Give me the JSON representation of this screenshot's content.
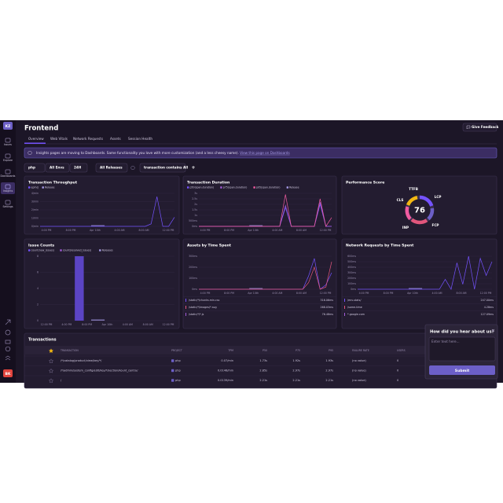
{
  "sidebar": {
    "avatar": "KZ",
    "items": [
      "Issues",
      "Explore",
      "Dashboards",
      "Insights",
      "Settings"
    ],
    "user": "BK"
  },
  "header": {
    "title": "Frontend",
    "feedback_button": "Give Feedback"
  },
  "tabs": [
    "Overview",
    "Web Vitals",
    "Network Requests",
    "Assets",
    "Session Health"
  ],
  "banner": {
    "text": "Insights pages are moving to Dashboards. Same functionality you love with more customization (and a less cheesy name).",
    "link": "View this page on Dashboards"
  },
  "filters": [
    "php",
    "All Envs",
    "24H",
    "All Releases",
    "transaction contains All",
    "+"
  ],
  "panels": {
    "throughput": {
      "type": "line",
      "title": "Transaction Throughput",
      "legend": [
        {
          "label": "epm()",
          "color": "#7553ff"
        },
        {
          "label": "Release",
          "color": "#a59ae6"
        }
      ],
      "ylim": [
        0,
        4
      ],
      "yticks": [
        {
          "value": 0,
          "label": "0/min"
        },
        {
          "value": 1,
          "label": "1/min"
        },
        {
          "value": 2,
          "label": "2/min"
        },
        {
          "value": 3,
          "label": "3/min"
        },
        {
          "value": 4,
          "label": "4/min"
        }
      ],
      "xticks": [
        "4:00 PM",
        "8:00 PM",
        "Apr 10th",
        "4:00 AM",
        "8:00 AM",
        "12:00 PM"
      ],
      "series": [
        {
          "color": "#7553ff",
          "values": [
            0,
            0,
            0,
            0,
            0,
            0,
            0,
            0,
            0,
            0,
            0,
            0,
            0,
            0,
            0,
            0,
            0,
            0,
            0,
            0.3,
            3.6,
            0,
            0,
            1.1
          ]
        }
      ]
    },
    "duration": {
      "type": "line",
      "title": "Transaction Duration",
      "legend": [
        {
          "label": "p50(span.duration)",
          "color": "#7553ff"
        },
        {
          "label": "p75(span.duration)",
          "color": "#a35bd9"
        },
        {
          "label": "p95(span.duration)",
          "color": "#f05ba0"
        },
        {
          "label": "Release",
          "color": "#a59ae6"
        }
      ],
      "ylim": [
        0,
        3
      ],
      "yticks": [
        {
          "value": 0,
          "label": "0ms"
        },
        {
          "value": 0.5,
          "label": "500ms"
        },
        {
          "value": 1,
          "label": "1s"
        },
        {
          "value": 1.5,
          "label": "1.5s"
        },
        {
          "value": 2,
          "label": "2s"
        },
        {
          "value": 2.5,
          "label": "2.5s"
        },
        {
          "value": 3,
          "label": "3s"
        }
      ],
      "xticks": [
        "4:00 PM",
        "8:00 PM",
        "Apr 10th",
        "4:00 AM",
        "8:00 AM",
        "12:00 PM"
      ],
      "series": [
        {
          "color": "#7553ff",
          "values": [
            0,
            0,
            0,
            0,
            0,
            0,
            0,
            0,
            0,
            0,
            0,
            0,
            0,
            0,
            0,
            1.7,
            0,
            0,
            0,
            0,
            0,
            2.0,
            0,
            0
          ]
        },
        {
          "color": "#a35bd9",
          "values": [
            0,
            0,
            0,
            0,
            0,
            0,
            0,
            0,
            0,
            0,
            0,
            0,
            0,
            0,
            0,
            1.9,
            0,
            0,
            0,
            0,
            0,
            2.2,
            0,
            0
          ]
        },
        {
          "color": "#f05ba0",
          "values": [
            0,
            0,
            0,
            0,
            0,
            0,
            0,
            0,
            0,
            0,
            0,
            0,
            0,
            0,
            0,
            2.9,
            0,
            0,
            0,
            0,
            0,
            2.5,
            0,
            0.8
          ]
        }
      ]
    },
    "issues": {
      "type": "bar",
      "title": "Issue Counts",
      "legend": [
        {
          "label": "count(new_issues)",
          "color": "#7553ff"
        },
        {
          "label": "count(resolved_issues)",
          "color": "#a35bd9"
        },
        {
          "label": "Releases",
          "color": "#a59ae6"
        }
      ],
      "ylim": [
        0,
        8
      ],
      "yticks": [
        0,
        2,
        4,
        6,
        8
      ],
      "xticks": [
        "12:00 PM",
        "4:00 PM",
        "8:00 PM",
        "Apr 10th",
        "4:00 AM",
        "8:00 AM",
        "12:00 PM"
      ],
      "series": [
        {
          "color": "#5b44c4",
          "values": [
            0,
            0,
            0,
            8,
            0,
            0,
            0,
            0,
            0,
            0,
            0,
            0
          ]
        }
      ]
    },
    "assets": {
      "type": "line",
      "title": "Assets by Time Spent",
      "ylim": [
        0,
        300
      ],
      "yticks": [
        {
          "value": 0,
          "label": "0ms"
        },
        {
          "value": 100,
          "label": "100ms"
        },
        {
          "value": 200,
          "label": "200ms"
        },
        {
          "value": 300,
          "label": "300ms"
        }
      ],
      "xticks": [
        "4:00 PM",
        "8:00 PM",
        "Apr 10th",
        "4:00 AM",
        "8:00 AM",
        "12:00 PM"
      ],
      "series": [
        {
          "color": "#7553ff",
          "values": [
            0,
            0,
            0,
            0,
            0,
            0,
            0,
            0,
            0,
            0,
            0,
            0,
            0,
            0,
            0,
            0,
            0,
            0,
            0,
            120,
            280,
            0,
            40,
            150
          ]
        },
        {
          "color": "#e1567c",
          "values": [
            0,
            0,
            0,
            0,
            0,
            0,
            0,
            0,
            0,
            0,
            0,
            0,
            0,
            0,
            0,
            0,
            0,
            0,
            0,
            60,
            200,
            0,
            20,
            250
          ]
        }
      ],
      "list": [
        {
          "label": "/static/*/chunks.min.css",
          "value": "316.06ms",
          "color": "#7553ff"
        },
        {
          "label": "/static/*/images/*.svg",
          "value": "268.03ms",
          "color": "#e1567c"
        },
        {
          "label": "/static/*/*.js",
          "value": "76.48ms",
          "color": "#a35bd9"
        }
      ]
    },
    "network": {
      "type": "line",
      "title": "Network Requests by Time Spent",
      "ylim": [
        0,
        600
      ],
      "yticks": [
        {
          "value": 0,
          "label": "0ms"
        },
        {
          "value": 100,
          "label": "100ms"
        },
        {
          "value": 200,
          "label": "200ms"
        },
        {
          "value": 300,
          "label": "300ms"
        },
        {
          "value": 400,
          "label": "400ms"
        },
        {
          "value": 500,
          "label": "500ms"
        },
        {
          "value": 600,
          "label": "600ms"
        }
      ],
      "xticks": [
        "4:00 PM",
        "8:00 PM",
        "Apr 10th",
        "4:00 AM",
        "8:00 AM",
        "12:00 PM"
      ],
      "series": [
        {
          "color": "#7553ff",
          "values": [
            0,
            0,
            0,
            0,
            0,
            0,
            0,
            0,
            0,
            0,
            0,
            0,
            0,
            0,
            0,
            180,
            0,
            480,
            90,
            600,
            0,
            560,
            250,
            500
          ]
        }
      ],
      "list": [
        {
          "label": "/env-stats/",
          "value": "247.00ms",
          "color": "#7553ff"
        },
        {
          "label": "/some-time",
          "value": "4.28ms",
          "color": "#e1567c"
        },
        {
          "label": "*.google.com",
          "value": "127.09ms",
          "color": "#a35bd9"
        }
      ]
    }
  },
  "performance": {
    "title": "Performance Score",
    "score": 76,
    "labels": [
      "TTFB",
      "LCP",
      "CLS",
      "INP",
      "FCP"
    ]
  },
  "transactions": {
    "title": "Transactions",
    "columns": [
      "TRANSACTION",
      "PROJECT",
      "TPM",
      "P50",
      "P75",
      "P95",
      "FAILURE RATE",
      "USERS"
    ],
    "rows": [
      [
        "/*/catalog/product/view/key/*/",
        "php",
        "0.07/min",
        "1.73s",
        "1.92s",
        "1.93s",
        "(no value)",
        "0"
      ],
      [
        "/*/admin/system_config/edit/key/*/section/kount_centry/",
        "php",
        "0.0146/min",
        "2.85s",
        "2.97s",
        "2.97s",
        "(no value)",
        "0"
      ],
      [
        "/",
        "php",
        "0.0139/min",
        "2.21s",
        "2.21s",
        "2.21s",
        "(no value)",
        "0"
      ]
    ]
  },
  "feedback": {
    "title": "How did you hear about us?",
    "placeholder": "Enter text here...",
    "submit": "Submit"
  }
}
